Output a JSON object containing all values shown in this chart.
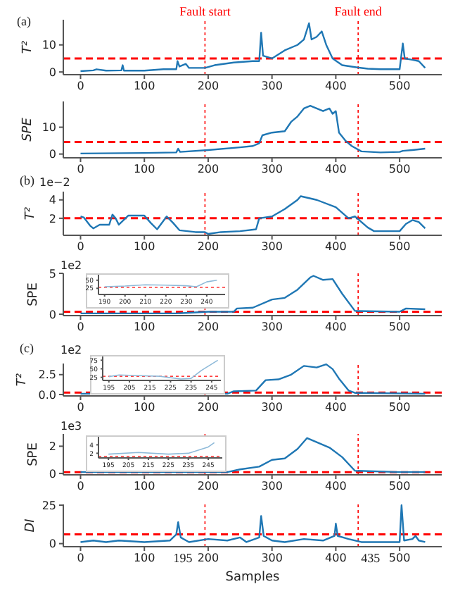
{
  "chart_data": [
    {
      "type": "line",
      "ylabel": "T²",
      "xlim": [
        -27,
        566
      ],
      "xticks": [
        0,
        100,
        200,
        300,
        400,
        500
      ],
      "ylim": [
        -1,
        19.3
      ],
      "yticks": [
        0,
        10
      ],
      "annotations": [
        "(a)"
      ],
      "series": [
        {
          "color": "#1f77b4",
          "x": [
            0,
            20,
            25,
            40,
            64,
            66,
            68,
            100,
            130,
            150,
            152,
            155,
            165,
            170,
            195,
            210,
            240,
            270,
            280,
            283,
            286,
            300,
            320,
            340,
            350,
            358,
            362,
            370,
            378,
            385,
            395,
            410,
            430,
            450,
            470,
            500,
            505,
            508,
            520,
            530,
            540
          ],
          "values": [
            0.3,
            0.6,
            1,
            0.5,
            0.6,
            2.5,
            0.5,
            0.5,
            1,
            1,
            4,
            2,
            3,
            1.5,
            1.5,
            2.5,
            3.5,
            4,
            4,
            14.5,
            6,
            5,
            8,
            10,
            12,
            18,
            12,
            13,
            15,
            10,
            5,
            2.5,
            1.8,
            1.2,
            1,
            1,
            10.5,
            5,
            4.5,
            4,
            1.5
          ]
        }
      ],
      "ref_lines": [
        {
          "axis": "x",
          "value": 195,
          "label": "Fault start",
          "color": "#ff0000",
          "line_style": "dotted"
        },
        {
          "axis": "x",
          "value": 435,
          "label": "Fault end",
          "color": "#ff0000",
          "line_style": "dotted"
        },
        {
          "axis": "y",
          "value": 5,
          "color": "#ff0000",
          "line_style": "dashed"
        }
      ]
    },
    {
      "type": "line",
      "ylabel": "SPE",
      "xlim": [
        -27,
        566
      ],
      "xticks": [
        0,
        100,
        200,
        300,
        400,
        500
      ],
      "ylim": [
        -1.4,
        19.6
      ],
      "yticks": [
        0,
        10
      ],
      "series": [
        {
          "color": "#1f77b4",
          "x": [
            0,
            100,
            150,
            153,
            156,
            200,
            250,
            270,
            280,
            285,
            300,
            320,
            330,
            340,
            350,
            360,
            370,
            380,
            390,
            395,
            400,
            405,
            415,
            425,
            440,
            470,
            500,
            505,
            520,
            540
          ],
          "values": [
            0.2,
            0.4,
            0.6,
            2,
            0.8,
            1.5,
            2.5,
            3,
            4,
            7,
            8,
            8.5,
            12,
            14,
            17,
            18,
            17,
            16,
            17,
            15,
            16,
            8,
            5,
            3,
            1,
            0.6,
            0.8,
            1.2,
            1.5,
            2
          ]
        }
      ],
      "ref_lines": [
        {
          "axis": "x",
          "value": 195,
          "color": "#ff0000",
          "line_style": "dotted"
        },
        {
          "axis": "x",
          "value": 435,
          "color": "#ff0000",
          "line_style": "dotted"
        },
        {
          "axis": "y",
          "value": 4.5,
          "color": "#ff0000",
          "line_style": "dashed"
        }
      ]
    },
    {
      "type": "line",
      "ylabel": "T²",
      "xlim": [
        -27,
        566
      ],
      "xticks": [
        0,
        100,
        200,
        300,
        400,
        500
      ],
      "ylim": [
        0.15,
        4.9
      ],
      "yticks": [
        2,
        4
      ],
      "annotations": [
        "(b)",
        "1e−2"
      ],
      "series": [
        {
          "color": "#1f77b4",
          "x": [
            0,
            5,
            15,
            20,
            30,
            45,
            50,
            55,
            60,
            75,
            100,
            110,
            120,
            135,
            145,
            155,
            180,
            195,
            200,
            220,
            250,
            275,
            280,
            300,
            320,
            340,
            345,
            370,
            400,
            420,
            430,
            450,
            460,
            500,
            510,
            520,
            530,
            540
          ],
          "values": [
            2.2,
            2.1,
            1.2,
            0.9,
            1.3,
            1.3,
            2.4,
            2,
            1.3,
            2.3,
            2.3,
            1.5,
            0.8,
            2.2,
            1.5,
            0.7,
            0.5,
            0.5,
            0.3,
            0.5,
            0.6,
            0.8,
            2,
            2.2,
            3,
            4,
            4.4,
            4,
            3.2,
            2,
            2.2,
            1,
            0.6,
            0.6,
            1.4,
            1.8,
            1.6,
            0.9
          ]
        }
      ],
      "ref_lines": [
        {
          "axis": "x",
          "value": 195,
          "color": "#ff0000",
          "line_style": "dotted"
        },
        {
          "axis": "x",
          "value": 435,
          "color": "#ff0000",
          "line_style": "dotted"
        },
        {
          "axis": "y",
          "value": 2,
          "color": "#ff0000",
          "line_style": "dashed"
        }
      ]
    },
    {
      "type": "line",
      "ylabel": "SPE",
      "xlim": [
        -27,
        566
      ],
      "xticks": [
        0,
        100,
        200,
        300,
        400,
        500
      ],
      "ylim": [
        -0.17,
        5
      ],
      "yticks": [
        0,
        5
      ],
      "annotations": [
        "1e2"
      ],
      "series": [
        {
          "color": "#1f77b4",
          "x": [
            0,
            150,
            200,
            240,
            245,
            270,
            300,
            320,
            340,
            360,
            365,
            380,
            395,
            410,
            430,
            500,
            510,
            540
          ],
          "values": [
            0.1,
            0.1,
            0.3,
            0.3,
            0.7,
            0.8,
            1.8,
            2,
            3,
            4.5,
            4.7,
            4.2,
            4.3,
            2.5,
            0.4,
            0.3,
            0.7,
            0.6
          ]
        }
      ],
      "ref_lines": [
        {
          "axis": "x",
          "value": 195,
          "color": "#ff0000",
          "line_style": "dotted"
        },
        {
          "axis": "x",
          "value": 435,
          "color": "#ff0000",
          "line_style": "dotted"
        },
        {
          "axis": "y",
          "value": 0.3,
          "color": "#ff0000",
          "line_style": "dashed"
        }
      ]
    },
    {
      "type": "line",
      "xlim": [
        187,
        249
      ],
      "xticks": [
        190,
        200,
        210,
        220,
        230,
        240
      ],
      "ylim": [
        6,
        67
      ],
      "yticks": [
        25,
        50
      ],
      "series": [
        {
          "color": "#8ebad9",
          "x": [
            190,
            200,
            210,
            220,
            230,
            235,
            240,
            245
          ],
          "values": [
            30,
            32,
            36,
            35,
            33,
            30,
            45,
            50
          ]
        }
      ],
      "ref_lines": [
        {
          "axis": "y",
          "value": 28,
          "color": "#ff0000",
          "line_style": "dotted"
        }
      ]
    },
    {
      "type": "line",
      "ylabel": "T²",
      "xlim": [
        -27,
        566
      ],
      "xticks": [
        0,
        100,
        200,
        300,
        400,
        500
      ],
      "ylim": [
        -0.18,
        3.9
      ],
      "yticks": [
        {
          "value": 0,
          "label": "0.0"
        },
        {
          "value": 2.5,
          "label": "2.5"
        }
      ],
      "annotations": [
        "(c)",
        "1e2"
      ],
      "series": [
        {
          "color": "#1f77b4",
          "x": [
            0,
            230,
            240,
            275,
            290,
            310,
            330,
            350,
            370,
            385,
            395,
            405,
            420,
            430,
            540
          ],
          "values": [
            0.1,
            0.1,
            0.4,
            0.5,
            1.8,
            1.9,
            2.5,
            3.6,
            3.4,
            3.8,
            3.2,
            2,
            0.5,
            0.2,
            0.1
          ]
        }
      ],
      "ref_lines": [
        {
          "axis": "x",
          "value": 195,
          "color": "#ff0000",
          "line_style": "dotted"
        },
        {
          "axis": "x",
          "value": 435,
          "color": "#ff0000",
          "line_style": "dotted"
        },
        {
          "axis": "y",
          "value": 0.25,
          "color": "#ff0000",
          "line_style": "dashed"
        }
      ]
    },
    {
      "type": "line",
      "xlim": [
        192,
        249.5
      ],
      "xticks": [
        195,
        205,
        215,
        225,
        235,
        245
      ],
      "ylim": [
        16,
        86
      ],
      "yticks": [
        25,
        50,
        75
      ],
      "series": [
        {
          "color": "#8ebad9",
          "x": [
            195,
            200,
            210,
            220,
            230,
            235,
            240,
            248
          ],
          "values": [
            27,
            32,
            30,
            28,
            20,
            22,
            45,
            75
          ]
        }
      ],
      "ref_lines": [
        {
          "axis": "y",
          "value": 28,
          "color": "#ff0000",
          "line_style": "dotted"
        }
      ]
    },
    {
      "type": "line",
      "ylabel": "SPE",
      "xlim": [
        -27,
        566
      ],
      "xticks": [
        0,
        100,
        200,
        300,
        400,
        500
      ],
      "ylim": [
        -0.1,
        2.9
      ],
      "yticks": [
        0,
        2
      ],
      "annotations": [
        "1e3"
      ],
      "series": [
        {
          "color": "#1f77b4",
          "x": [
            0,
            230,
            250,
            280,
            300,
            320,
            340,
            355,
            370,
            390,
            410,
            430,
            500,
            510,
            540
          ],
          "values": [
            0.1,
            0.1,
            0.3,
            0.5,
            1,
            1.1,
            1.8,
            2.6,
            2.3,
            1.9,
            1.2,
            0.2,
            0.1,
            0.1,
            0.1
          ]
        }
      ],
      "ref_lines": [
        {
          "axis": "x",
          "value": 195,
          "color": "#ff0000",
          "line_style": "dotted"
        },
        {
          "axis": "x",
          "value": 435,
          "color": "#ff0000",
          "line_style": "dotted"
        },
        {
          "axis": "y",
          "value": 0.1,
          "color": "#ff0000",
          "line_style": "dashed"
        }
      ]
    },
    {
      "type": "line",
      "xlim": [
        190,
        252
      ],
      "xticks": [
        195,
        205,
        215,
        225,
        235,
        245
      ],
      "ylim": [
        0.9,
        5.9
      ],
      "yticks": [
        2,
        4
      ],
      "series": [
        {
          "color": "#8ebad9",
          "x": [
            195,
            210,
            225,
            235,
            245,
            248
          ],
          "values": [
            1.8,
            2.2,
            1.8,
            2,
            3.5,
            4.5
          ]
        }
      ],
      "ref_lines": [
        {
          "axis": "y",
          "value": 1.3,
          "color": "#ff0000",
          "line_style": "dotted"
        }
      ]
    },
    {
      "type": "line",
      "ylabel": "DI",
      "xlabel": "Samples",
      "xlim": [
        -27,
        566
      ],
      "xticks": [
        0,
        100,
        200,
        300,
        400,
        500
      ],
      "ylim": [
        -2,
        25.5
      ],
      "yticks": [
        0,
        25
      ],
      "series": [
        {
          "color": "#1f77b4",
          "x": [
            0,
            20,
            40,
            60,
            100,
            140,
            150,
            153,
            157,
            170,
            200,
            230,
            250,
            260,
            280,
            283,
            287,
            300,
            320,
            350,
            380,
            398,
            400,
            403,
            420,
            440,
            470,
            500,
            503,
            507,
            520,
            525,
            530,
            540
          ],
          "values": [
            1,
            2,
            1,
            2,
            1,
            2,
            6,
            14,
            4,
            1,
            3,
            2,
            4,
            1,
            4,
            18,
            5,
            2,
            1,
            3,
            2,
            5,
            13,
            5,
            3,
            1,
            1,
            1,
            25,
            2,
            3,
            5,
            2,
            1
          ]
        }
      ],
      "ref_lines": [
        {
          "axis": "x",
          "value": 195,
          "label": "195",
          "color": "#ff0000",
          "line_style": "dotted"
        },
        {
          "axis": "x",
          "value": 435,
          "label": "435",
          "color": "#ff0000",
          "line_style": "dotted"
        },
        {
          "axis": "y",
          "value": 6,
          "color": "#ff0000",
          "line_style": "dashed"
        }
      ]
    }
  ]
}
